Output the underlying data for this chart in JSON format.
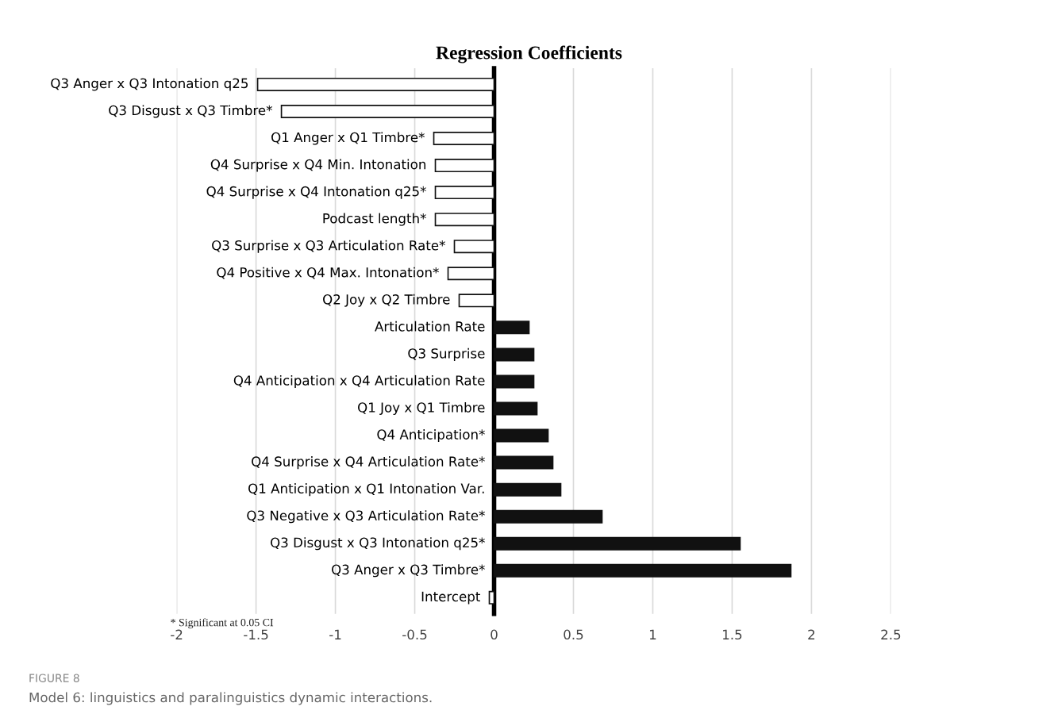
{
  "chart_data": {
    "type": "bar",
    "orientation": "horizontal",
    "title": "Regression Coefficients",
    "categories": [
      "Q3 Anger x Q3 Intonation q25",
      "Q3 Disgust x Q3 Timbre*",
      "Q1 Anger x Q1 Timbre*",
      "Q4 Surprise x Q4 Min. Intonation",
      "Q4 Surprise x Q4 Intonation q25*",
      "Podcast length*",
      "Q3 Surprise x Q3 Articulation Rate*",
      "Q4 Positive x Q4 Max. Intonation*",
      "Q2 Joy x Q2 Timbre",
      "Articulation Rate",
      "Q3 Surprise",
      "Q4 Anticipation x Q4 Articulation Rate",
      "Q1 Joy x Q1 Timbre",
      "Q4 Anticipation*",
      "Q4 Surprise x Q4 Articulation Rate*",
      "Q1 Anticipation x Q1 Intonation Var.",
      "Q3 Negative x Q3 Articulation Rate*",
      "Q3 Disgust x Q3 Intonation q25*",
      "Q3 Anger x Q3 Timbre*",
      "Intercept"
    ],
    "values": [
      -1.49,
      -1.34,
      -0.38,
      -0.37,
      -0.37,
      -0.37,
      -0.25,
      -0.29,
      -0.22,
      0.22,
      0.25,
      0.25,
      0.27,
      0.34,
      0.37,
      0.42,
      0.68,
      1.55,
      1.87,
      -0.03
    ],
    "colors": [
      "#ffffff",
      "#ffffff",
      "#ffffff",
      "#ffffff",
      "#ffffff",
      "#ffffff",
      "#ffffff",
      "#ffffff",
      "#ffffff",
      "#111111",
      "#111111",
      "#111111",
      "#111111",
      "#111111",
      "#111111",
      "#111111",
      "#111111",
      "#111111",
      "#111111",
      "#ffffff"
    ],
    "xlim": [
      -2,
      2.5
    ],
    "xticks": [
      -2,
      -1.5,
      -1,
      -0.5,
      0,
      0.5,
      1,
      1.5,
      2,
      2.5
    ],
    "grid": "x",
    "legend": false,
    "annotations": [
      "* Significant at 0.05 CI",
      "FIGURE 8",
      "Model 6: linguistics and paralinguistics dynamic interactions."
    ]
  }
}
